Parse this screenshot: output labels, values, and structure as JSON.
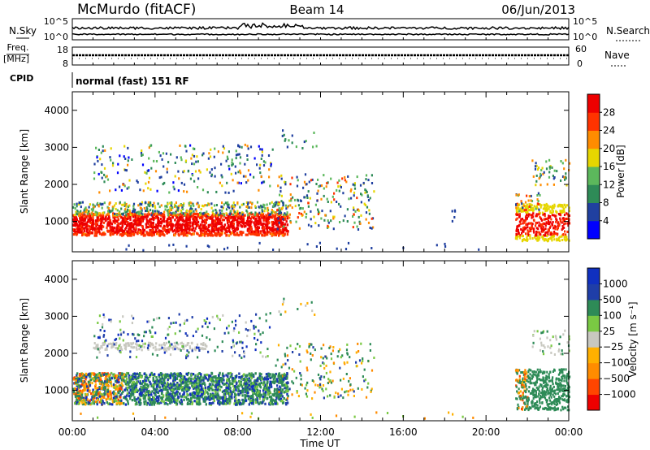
{
  "header": {
    "station": "McMurdo (fitACF)",
    "beam": "Beam 14",
    "date": "06/Jun/2013"
  },
  "noise_panel": {
    "left_label": "N.Sky",
    "right_label": "N.Search",
    "left_ticks": [
      "10^5",
      "10^0"
    ],
    "right_ticks": [
      "10^5",
      "10^0"
    ]
  },
  "freq_panel": {
    "left_label": "Freq.",
    "left_unit": "[MHz]",
    "right_label": "Nave",
    "left_ticks": [
      "18",
      "8"
    ],
    "right_ticks": [
      "60",
      "0"
    ]
  },
  "cpid_panel": {
    "label": "CPID",
    "text": "normal (fast) 151 RF"
  },
  "colors": {
    "power": [
      "#0000ff",
      "#2040a0",
      "#2e8b57",
      "#5cb85c",
      "#e6d600",
      "#ff8c00",
      "#ff3300",
      "#ee0000"
    ],
    "velocity": [
      "#ee0000",
      "#ff4500",
      "#ff8c00",
      "#ffb000",
      "#c8c8c0",
      "#7ac943",
      "#2e8b57",
      "#1f3ea8",
      "#1030c0"
    ]
  },
  "chart_data": [
    {
      "type": "heatmap",
      "title": "",
      "xlabel": "",
      "ylabel": "Slant Range [km]",
      "xlim": [
        "00:00",
        "24:00"
      ],
      "ylim": [
        180,
        4500
      ],
      "y_ticks": [
        "1000",
        "2000",
        "3000",
        "4000"
      ],
      "grid": false,
      "colorbar": {
        "label": "Power [dB]",
        "range": [
          0,
          32
        ],
        "ticks": [
          "4",
          "8",
          "12",
          "16",
          "20",
          "24",
          "28"
        ]
      },
      "bands": [
        {
          "t_start": 0.0,
          "t_end": 10.4,
          "r_low": 700,
          "r_high": 1500,
          "level": "high (24-32 dB)"
        },
        {
          "t_start": 10.0,
          "t_end": 14.6,
          "r_low": 800,
          "r_high": 2200,
          "level": "medium (8-24 dB)"
        },
        {
          "t_start": 1.0,
          "t_end": 9.5,
          "r_low": 1800,
          "r_high": 3100,
          "level": "low (4-16 dB)"
        },
        {
          "t_start": 21.4,
          "t_end": 24.0,
          "r_low": 500,
          "r_high": 1600,
          "level": "high (20-32 dB)"
        },
        {
          "t_start": 22.0,
          "t_end": 24.0,
          "r_low": 2000,
          "r_high": 2700,
          "level": "low-medium (8-20 dB)"
        }
      ]
    },
    {
      "type": "heatmap",
      "title": "",
      "xlabel": "Time UT",
      "ylabel": "Slant Range [km]",
      "xlim": [
        "00:00",
        "24:00"
      ],
      "ylim": [
        180,
        4500
      ],
      "x_ticks": [
        "00:00",
        "04:00",
        "08:00",
        "12:00",
        "16:00",
        "20:00",
        "00:00"
      ],
      "y_ticks": [
        "1000",
        "2000",
        "3000",
        "4000"
      ],
      "grid": false,
      "colorbar": {
        "label": "Velocity [m s⁻¹]",
        "range": [
          -1500,
          1500
        ],
        "ticks": [
          "1000",
          "500",
          "100",
          "25",
          "−25",
          "−100",
          "−500",
          "−1000"
        ]
      },
      "bands": [
        {
          "t_start": 0.0,
          "t_end": 10.4,
          "r_low": 700,
          "r_high": 1500,
          "level": "mostly 100-500 m/s with patches >500"
        },
        {
          "t_start": 1.0,
          "t_end": 6.5,
          "r_low": 2100,
          "r_high": 2300,
          "level": "near zero (-25 to 25)"
        },
        {
          "t_start": 21.4,
          "t_end": 24.0,
          "r_low": 500,
          "r_high": 1600,
          "level": "100-500 m/s, negative edge at onset"
        }
      ]
    }
  ]
}
